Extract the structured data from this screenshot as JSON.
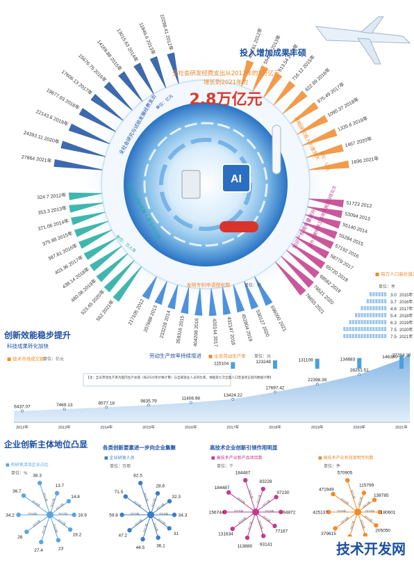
{
  "header": {
    "section_title": "投入增加成果丰硕",
    "intro_line1": "全社会研发经费支出从2012年的1万亿元",
    "intro_line2": "增长到2021年的",
    "headline_value": "2.8万亿元"
  },
  "labels": {
    "rnd_spend": "全社会研究与试验发展经费支出",
    "rnd_unit": "单位：亿元",
    "basic_research": "基础研究投入力度加大",
    "basic_unit": "单位：亿元",
    "researchers": "研究与试验发展人员全时当量",
    "researchers_unit": "单位：万人年",
    "sci_papers": "国外主要检索工具收录我国科技论文",
    "patents_grant": "发明专利申请授权数",
    "patents_unit": "单位：项",
    "ip_holdings": "知识产权拥有量提升",
    "high_value": "每万人口高价值发明专利拥有量",
    "high_value_unit": "单位：件",
    "innovation_title": "创新效能稳步提升",
    "tech_transfer": "科技成果转化加快",
    "tech_market": "技术市场成交额",
    "tech_market_unit": "单位：亿元",
    "labor_prod": "劳动生产效率持续增进",
    "labor_legend": "全员劳动生产率",
    "labor_unit": "单位：元",
    "note": "【注：全员劳动生产率为国内生产总值（按2020年价格计算）与全部就业人员的比率，根据第七次全国人口普查修正后的数据计算】",
    "enterprise_title": "企业创新主体地位凸显",
    "radial1_title": "",
    "radial1_sub": "有研发活动企业占比",
    "radial1_unit": "单位：%",
    "radial2_title": "各类创新要素进一步向企业集聚",
    "radial2_sub": "企业研发人员",
    "radial2_unit": "单位：万项",
    "radial3_title": "高技术企业创新引领作用明显",
    "radial3_sub": "高技术产业新产品项目数",
    "radial3_unit": "单位：个",
    "radial4_title": "",
    "radial4_sub": "高技术产业有效发明专利数",
    "radial4_unit": "单位：件",
    "watermark": "技术开发网"
  },
  "colors": {
    "navy": "#1b4fa0",
    "blue": "#2f7fd6",
    "teal": "#1faaa0",
    "orange": "#f08a2a",
    "magenta": "#c23a8a",
    "light": "#9cc6ec",
    "red": "#d83a2a"
  },
  "chart_data": [
    {
      "type": "bar",
      "name": "rnd_spending",
      "categories": [
        "2012年",
        "2013年",
        "2014年",
        "2015年",
        "2016年",
        "2017年",
        "2018年",
        "2019年",
        "2020年",
        "2021年"
      ],
      "values": [
        10298.41,
        11846.6,
        13015.63,
        14169.88,
        15676.75,
        17606.13,
        19677.93,
        22143.6,
        24393.11,
        27864.0
      ]
    },
    {
      "type": "bar",
      "name": "basic_research",
      "categories": [
        "2012年",
        "2013年",
        "2014年",
        "2015年",
        "2016年",
        "2017年",
        "2018年",
        "2019年",
        "2020年",
        "2021年"
      ],
      "values": [
        498.81,
        554.95,
        613.54,
        716.12,
        822.89,
        975.49,
        1090.37,
        1335.6,
        1467.0,
        1696.0
      ]
    },
    {
      "type": "bar",
      "name": "researchers",
      "categories": [
        "2012年",
        "2013年",
        "2014年",
        "2015年",
        "2016年",
        "2017年",
        "2018年",
        "2019年",
        "2020年",
        "2021年"
      ],
      "values": [
        324.7,
        353.3,
        371.06,
        375.88,
        387.81,
        403.36,
        438.14,
        480.08,
        523.45,
        562.0
      ]
    },
    {
      "type": "bar",
      "name": "patents_granted",
      "categories": [
        "2012",
        "2013",
        "2014",
        "2015",
        "2016",
        "2017",
        "2018",
        "2019",
        "2020",
        "2021"
      ],
      "values": [
        217105,
        207688,
        233228,
        359316,
        404208,
        420144,
        432147,
        452804,
        530127,
        696000
      ]
    },
    {
      "type": "bar",
      "name": "sci_papers",
      "categories": [
        "2012",
        "2013",
        "2014",
        "2015",
        "2016",
        "2017",
        "2018",
        "2019",
        "2020",
        "2021"
      ],
      "values": [
        51723,
        53094,
        55140,
        55284,
        57192,
        58779,
        65720,
        68562,
        76521,
        76655
      ]
    },
    {
      "type": "bar",
      "name": "high_value_patents",
      "categories": [
        "2015年",
        "2016年",
        "2017年",
        "2018年",
        "2019年",
        "2020年",
        "2021年"
      ],
      "values": [
        3.0,
        3.7,
        4.6,
        5.4,
        6.3,
        7.5,
        7.5
      ]
    },
    {
      "type": "area",
      "name": "tech_market",
      "x": [
        "2012年",
        "2013年",
        "2014年",
        "2015年",
        "2016年",
        "2017年",
        "2018年",
        "2019年",
        "2020年",
        "2021年"
      ],
      "values": [
        6437.07,
        7469.13,
        8577.18,
        9835.79,
        11406.98,
        13424.22,
        17697.42,
        22398.39,
        28251.51,
        37294.3
      ]
    },
    {
      "type": "bar",
      "name": "labor_productivity",
      "categories": [
        "2017年",
        "2018年",
        "2019年",
        "2020年",
        "2021年"
      ],
      "values": [
        115104,
        123248,
        131109,
        134683,
        146380
      ]
    },
    {
      "type": "radial",
      "name": "rd_firms_share",
      "categories": [
        "2012年",
        "2013年",
        "2014年",
        "2015年",
        "2016年",
        "2017年",
        "2018年",
        "2019年",
        "2020年",
        "2021年"
      ],
      "values": [
        13.7,
        14.8,
        16.9,
        19.2,
        23.0,
        27.4,
        28.0,
        34.2,
        36.7,
        38.3
      ]
    },
    {
      "type": "radial",
      "name": "enterprise_researchers",
      "categories": [
        "2012年",
        "2013年",
        "2014年",
        "2015年",
        "2016年",
        "2017年",
        "2018年",
        "2019年",
        "2020年",
        "2021年"
      ],
      "values": [
        28.8,
        32.3,
        34.3,
        31.0,
        36.1,
        44.5,
        47.2,
        59.8,
        71.5,
        82.5
      ]
    },
    {
      "type": "radial",
      "name": "hightech_new_products",
      "categories": [
        "2012年",
        "2013年",
        "2014年",
        "2015年",
        "2016年",
        "2017年",
        "2018年",
        "2019年",
        "2020年",
        "2021年"
      ],
      "values": [
        83228,
        97230,
        94872,
        77167,
        93141,
        113889,
        131634,
        156744,
        184487,
        184487
      ]
    },
    {
      "type": "radial",
      "name": "hightech_patents",
      "categories": [
        "2012年",
        "2013年",
        "2014年",
        "2015年",
        "2016年",
        "2017年",
        "2018年",
        "2019年",
        "2020年",
        "2021年"
      ],
      "values": [
        115799,
        138785,
        180601,
        205050,
        257234,
        306431,
        379615,
        425137,
        471949,
        570905
      ]
    }
  ]
}
